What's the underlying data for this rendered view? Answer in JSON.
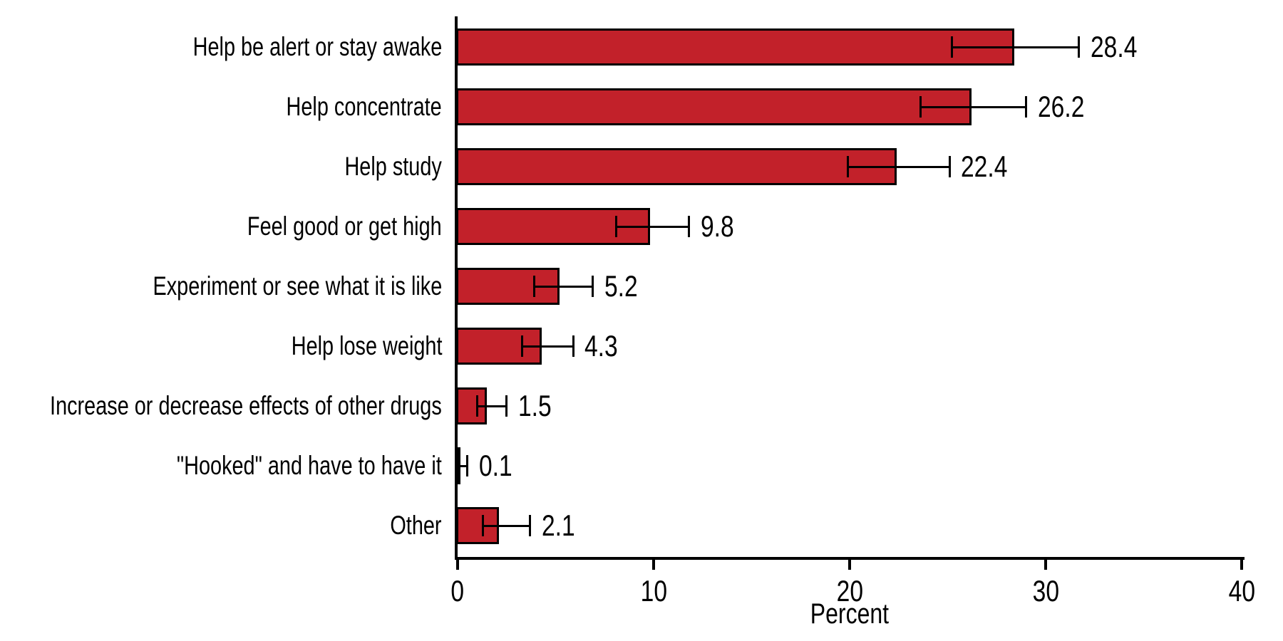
{
  "chart_data": {
    "type": "bar",
    "orientation": "horizontal",
    "title": "",
    "xlabel": "Percent",
    "categories": [
      "Help be alert or stay awake",
      "Help concentrate",
      "Help study",
      "Feel good or get high",
      "Experiment or see what it is like",
      "Help lose weight",
      "Increase or decrease effects of other drugs",
      "\"Hooked\" and have to have it",
      "Other"
    ],
    "values": [
      28.4,
      26.2,
      22.4,
      9.8,
      5.2,
      4.3,
      1.5,
      0.1,
      2.1
    ],
    "value_labels": [
      "28.4",
      "26.2",
      "22.4",
      "9.8",
      "5.2",
      "4.3",
      "1.5",
      "0.1",
      "2.1"
    ],
    "error_bars_ci": [
      [
        25.2,
        31.7
      ],
      [
        23.6,
        29.0
      ],
      [
        19.9,
        25.1
      ],
      [
        8.1,
        11.8
      ],
      [
        3.9,
        6.9
      ],
      [
        3.3,
        5.9
      ],
      [
        1.0,
        2.5
      ],
      [
        0.02,
        0.5
      ],
      [
        1.3,
        3.7
      ]
    ],
    "xlim": [
      0,
      40
    ],
    "x_ticks": [
      0,
      10,
      20,
      30,
      40
    ],
    "grid": false,
    "legend": null,
    "bar_color": "#C2212A",
    "bar_border_color": "#000000",
    "axis_color": "#000000",
    "text_color": "#000000"
  }
}
